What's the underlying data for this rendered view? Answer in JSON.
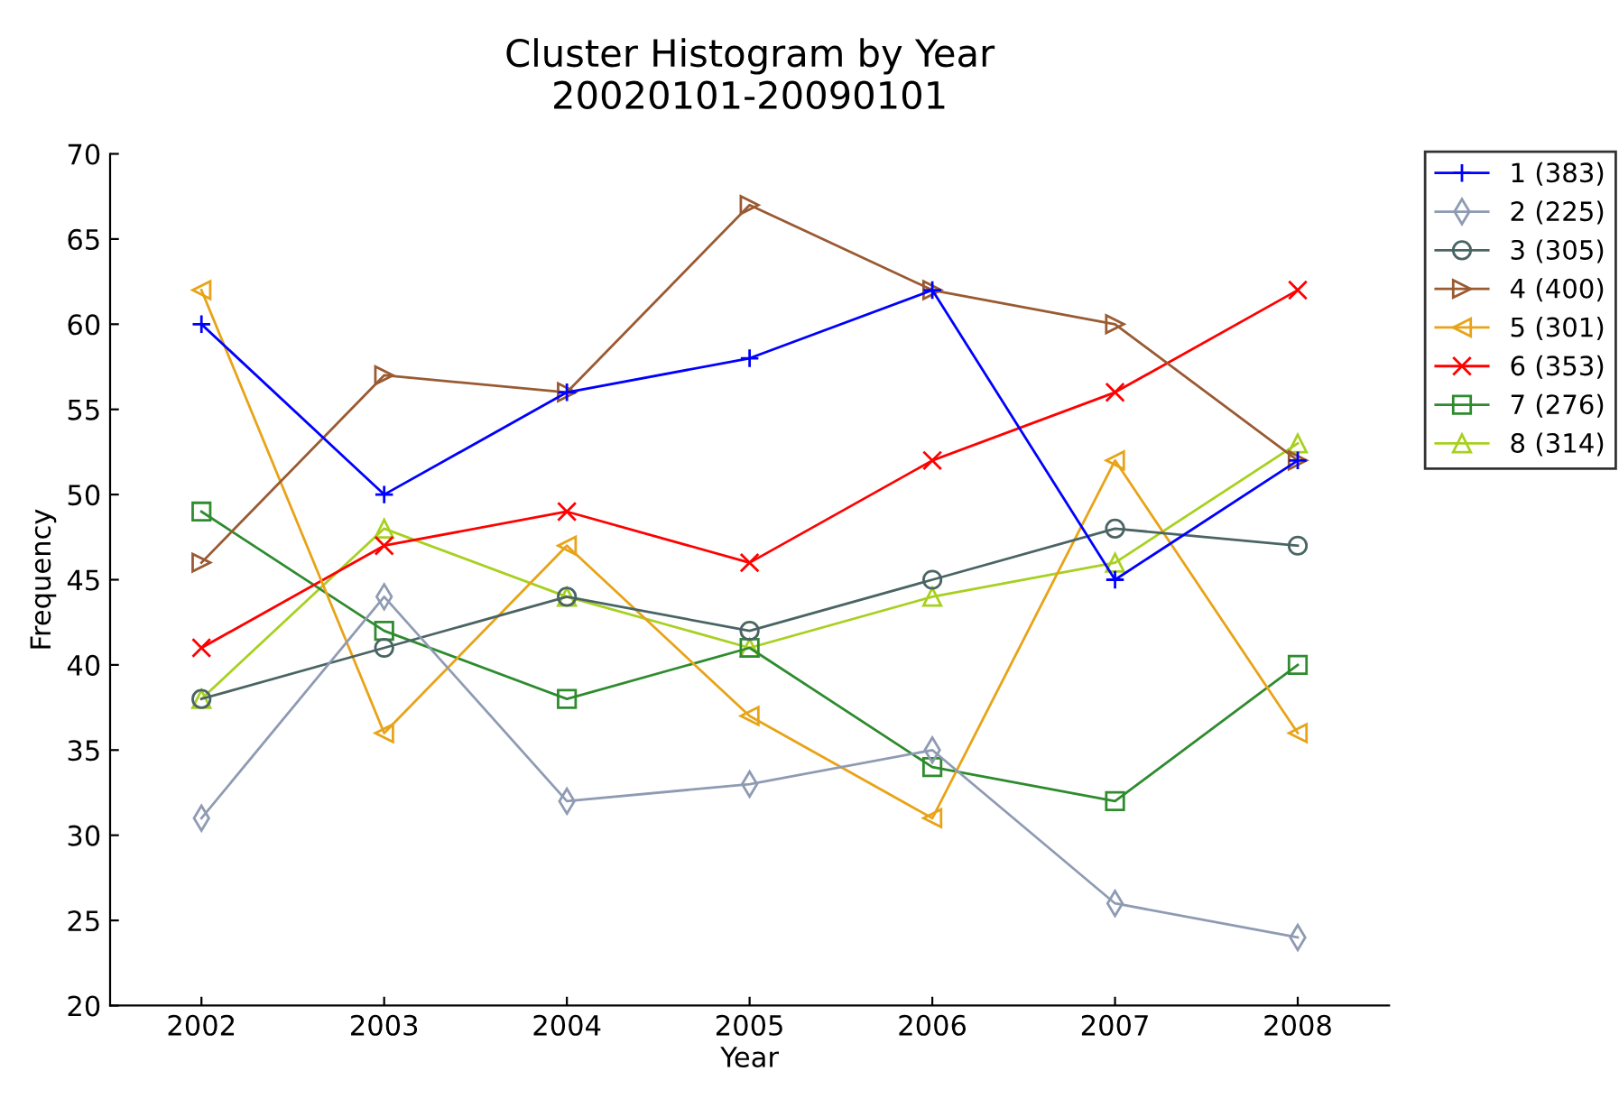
{
  "chart_data": {
    "type": "line",
    "title": "Cluster Histogram by Year",
    "subtitle": "20020101-20090101",
    "xlabel": "Year",
    "ylabel": "Frequency",
    "x": [
      2002,
      2003,
      2004,
      2005,
      2006,
      2007,
      2008
    ],
    "xlim": [
      2001.5,
      2008.5
    ],
    "xticks": [
      2002,
      2003,
      2004,
      2005,
      2006,
      2007,
      2008
    ],
    "ylim": [
      20,
      70
    ],
    "yticks": [
      20,
      25,
      30,
      35,
      40,
      45,
      50,
      55,
      60,
      65,
      70
    ],
    "grid": false,
    "legend": "top right",
    "line_style": "solid",
    "series": [
      {
        "name": "1 (383)",
        "color": "#0000ff",
        "marker": "plus",
        "values": [
          60,
          50,
          56,
          58,
          62,
          45,
          52
        ]
      },
      {
        "name": "2 (225)",
        "color": "#8f9bb3",
        "marker": "diamond",
        "values": [
          31,
          44,
          32,
          33,
          35,
          26,
          24
        ]
      },
      {
        "name": "3 (305)",
        "color": "#4a6464",
        "marker": "circle",
        "values": [
          38,
          41,
          44,
          42,
          45,
          48,
          47
        ]
      },
      {
        "name": "4 (400)",
        "color": "#9a5a32",
        "marker": "triangle-right",
        "values": [
          46,
          57,
          56,
          67,
          62,
          60,
          52
        ]
      },
      {
        "name": "5 (301)",
        "color": "#e8a317",
        "marker": "triangle-left",
        "values": [
          62,
          36,
          47,
          37,
          31,
          52,
          36
        ]
      },
      {
        "name": "6 (353)",
        "color": "#ff0000",
        "marker": "x",
        "values": [
          41,
          47,
          49,
          46,
          52,
          56,
          62
        ]
      },
      {
        "name": "7 (276)",
        "color": "#2e8b2e",
        "marker": "square",
        "values": [
          49,
          42,
          38,
          41,
          34,
          32,
          40
        ]
      },
      {
        "name": "8 (314)",
        "color": "#a8d020",
        "marker": "triangle",
        "values": [
          38,
          48,
          44,
          41,
          44,
          46,
          53
        ]
      }
    ]
  }
}
